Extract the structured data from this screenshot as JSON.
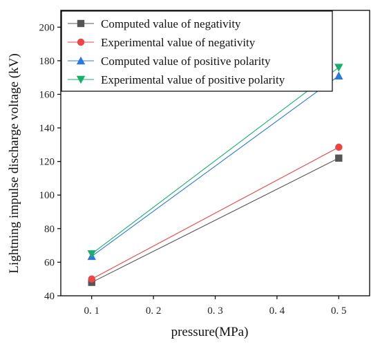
{
  "chart_data": {
    "type": "line",
    "x": [
      0.1,
      0.5
    ],
    "xticks": [
      "0. 1",
      "0. 2",
      "0. 3",
      "0. 4",
      "0. 5"
    ],
    "xtick_values": [
      0.1,
      0.2,
      0.3,
      0.4,
      0.5
    ],
    "yticks": [
      "40",
      "60",
      "80",
      "100",
      "120",
      "140",
      "160",
      "180",
      "200"
    ],
    "ytick_values": [
      40,
      60,
      80,
      100,
      120,
      140,
      160,
      180,
      200
    ],
    "xlim": [
      0.05,
      0.55
    ],
    "ylim": [
      40,
      210
    ],
    "xlabel": "pressure(MPa)",
    "ylabel": "Lightning impulse discharge voltage (kV)",
    "grid": false,
    "legend_position": "top-left",
    "series": [
      {
        "name": "Computed value of negativity",
        "values": [
          48,
          122
        ],
        "color": "#555555",
        "marker": "square"
      },
      {
        "name": "Experimental value of negativity",
        "values": [
          50,
          128.5
        ],
        "color": "#ef4444",
        "marker": "circle"
      },
      {
        "name": "Computed value of positive polarity",
        "values": [
          63.5,
          171
        ],
        "color": "#2a78e0",
        "marker": "triangle-up"
      },
      {
        "name": "Experimental value of positive polarity",
        "values": [
          65,
          176
        ],
        "color": "#16b06a",
        "marker": "triangle-down"
      }
    ]
  }
}
